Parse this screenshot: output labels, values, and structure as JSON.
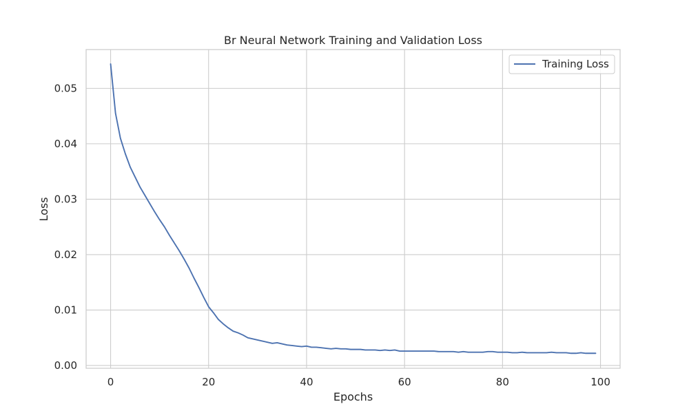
{
  "chart_data": {
    "type": "line",
    "title": "Br Neural Network Training and Validation Loss",
    "xlabel": "Epochs",
    "ylabel": "Loss",
    "xlim": [
      -5,
      104
    ],
    "ylim": [
      -0.0005,
      0.057
    ],
    "xticks": [
      0,
      20,
      40,
      60,
      80,
      100
    ],
    "yticks": [
      0.0,
      0.01,
      0.02,
      0.03,
      0.04,
      0.05
    ],
    "xtick_labels": [
      "0",
      "20",
      "40",
      "60",
      "80",
      "100"
    ],
    "ytick_labels": [
      "0.00",
      "0.01",
      "0.02",
      "0.03",
      "0.04",
      "0.05"
    ],
    "grid": true,
    "legend_position": "top-right",
    "series": [
      {
        "name": "Training Loss",
        "color": "#4c72b0",
        "x": [
          0,
          1,
          2,
          3,
          4,
          5,
          6,
          7,
          8,
          9,
          10,
          11,
          12,
          13,
          14,
          15,
          16,
          17,
          18,
          19,
          20,
          21,
          22,
          23,
          24,
          25,
          26,
          27,
          28,
          29,
          30,
          31,
          32,
          33,
          34,
          35,
          36,
          37,
          38,
          39,
          40,
          41,
          42,
          43,
          44,
          45,
          46,
          47,
          48,
          49,
          50,
          51,
          52,
          53,
          54,
          55,
          56,
          57,
          58,
          59,
          60,
          61,
          62,
          63,
          64,
          65,
          66,
          67,
          68,
          69,
          70,
          71,
          72,
          73,
          74,
          75,
          76,
          77,
          78,
          79,
          80,
          81,
          82,
          83,
          84,
          85,
          86,
          87,
          88,
          89,
          90,
          91,
          92,
          93,
          94,
          95,
          96,
          97,
          98,
          99
        ],
        "values": [
          0.0544,
          0.0455,
          0.041,
          0.0382,
          0.0358,
          0.034,
          0.0322,
          0.0307,
          0.0292,
          0.0277,
          0.0263,
          0.025,
          0.0235,
          0.0221,
          0.0207,
          0.0192,
          0.0176,
          0.0158,
          0.0141,
          0.0123,
          0.0106,
          0.0095,
          0.0083,
          0.0075,
          0.0068,
          0.0062,
          0.0059,
          0.0055,
          0.005,
          0.0048,
          0.0046,
          0.0044,
          0.0042,
          0.004,
          0.0041,
          0.0039,
          0.0037,
          0.0036,
          0.0035,
          0.0034,
          0.0035,
          0.0033,
          0.0033,
          0.0032,
          0.0031,
          0.003,
          0.0031,
          0.003,
          0.003,
          0.0029,
          0.0029,
          0.0029,
          0.0028,
          0.0028,
          0.0028,
          0.0027,
          0.0028,
          0.0027,
          0.0028,
          0.0026,
          0.0026,
          0.0026,
          0.0026,
          0.0026,
          0.0026,
          0.0026,
          0.0026,
          0.0025,
          0.0025,
          0.0025,
          0.0025,
          0.0024,
          0.0025,
          0.0024,
          0.0024,
          0.0024,
          0.0024,
          0.0025,
          0.0025,
          0.0024,
          0.0024,
          0.0024,
          0.0023,
          0.0023,
          0.0024,
          0.0023,
          0.0023,
          0.0023,
          0.0023,
          0.0023,
          0.0024,
          0.0023,
          0.0023,
          0.0023,
          0.0022,
          0.0022,
          0.0023,
          0.0022,
          0.0022,
          0.0022
        ]
      }
    ]
  }
}
